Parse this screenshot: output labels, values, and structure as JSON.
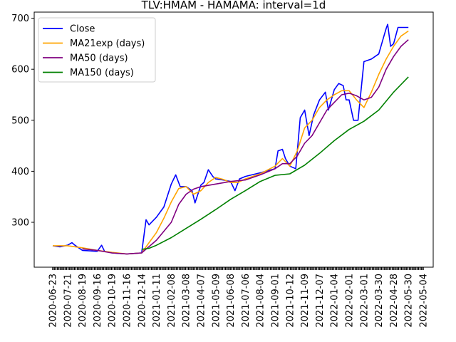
{
  "chart_data": {
    "type": "line",
    "title": "TLV:HMAM - HAMAMA: interval=1d",
    "xlabel": "",
    "ylabel": "",
    "ylim": [
      212,
      712
    ],
    "y_ticks": [
      300,
      400,
      500,
      600,
      700
    ],
    "x_tick_labels": [
      "2020-06-23",
      "2020-07-21",
      "2020-08-19",
      "2020-09-16",
      "2020-10-19",
      "2020-11-16",
      "2020-12-14",
      "2021-01-11",
      "2021-02-08",
      "2021-03-08",
      "2021-04-07",
      "2021-05-09",
      "2021-06-08",
      "2021-07-06",
      "2021-08-04",
      "2021-09-01",
      "2021-10-12",
      "2021-11-09",
      "2021-12-07",
      "2022-01-04",
      "2022-02-01",
      "2022-03-01",
      "2022-03-30",
      "2022-04-28",
      "2022-05-30",
      "2022-05-04"
    ],
    "grid": false,
    "legend_position": "top-left",
    "series": [
      {
        "name": "Close",
        "color": "#0000ff",
        "points": [
          [
            0,
            254
          ],
          [
            0.5,
            252
          ],
          [
            1,
            255
          ],
          [
            1.3,
            260
          ],
          [
            1.5,
            255
          ],
          [
            2,
            245
          ],
          [
            3,
            243
          ],
          [
            3.3,
            255
          ],
          [
            3.5,
            243
          ],
          [
            4,
            240
          ],
          [
            5,
            238
          ],
          [
            6,
            240
          ],
          [
            6.3,
            305
          ],
          [
            6.5,
            295
          ],
          [
            7,
            310
          ],
          [
            7.5,
            330
          ],
          [
            8,
            375
          ],
          [
            8.3,
            393
          ],
          [
            8.6,
            370
          ],
          [
            9,
            370
          ],
          [
            9.4,
            362
          ],
          [
            9.6,
            338
          ],
          [
            10,
            373
          ],
          [
            10.2,
            378
          ],
          [
            10.5,
            403
          ],
          [
            10.8,
            390
          ],
          [
            11,
            385
          ],
          [
            11.5,
            383
          ],
          [
            12,
            380
          ],
          [
            12.3,
            362
          ],
          [
            12.6,
            385
          ],
          [
            13,
            390
          ],
          [
            14,
            397
          ],
          [
            15,
            405
          ],
          [
            15.2,
            440
          ],
          [
            15.5,
            443
          ],
          [
            15.7,
            425
          ],
          [
            16,
            410
          ],
          [
            16.4,
            405
          ],
          [
            16.7,
            505
          ],
          [
            17,
            520
          ],
          [
            17.3,
            470
          ],
          [
            17.6,
            510
          ],
          [
            18,
            540
          ],
          [
            18.4,
            555
          ],
          [
            18.6,
            520
          ],
          [
            19,
            560
          ],
          [
            19.3,
            572
          ],
          [
            19.6,
            568
          ],
          [
            19.8,
            540
          ],
          [
            20,
            540
          ],
          [
            20.3,
            500
          ],
          [
            20.6,
            500
          ],
          [
            21,
            615
          ],
          [
            21.5,
            620
          ],
          [
            22,
            630
          ],
          [
            22.3,
            660
          ],
          [
            22.5,
            680
          ],
          [
            22.6,
            688
          ],
          [
            22.8,
            645
          ],
          [
            23,
            650
          ],
          [
            23.3,
            682
          ],
          [
            24,
            682
          ]
        ]
      },
      {
        "name": "MA21exp (days)",
        "color": "#ffa500",
        "points": [
          [
            0,
            254
          ],
          [
            1,
            254
          ],
          [
            2,
            250
          ],
          [
            3,
            245
          ],
          [
            4,
            241
          ],
          [
            5,
            238
          ],
          [
            6,
            240
          ],
          [
            6.5,
            260
          ],
          [
            7,
            280
          ],
          [
            7.5,
            308
          ],
          [
            8,
            340
          ],
          [
            8.5,
            366
          ],
          [
            9,
            370
          ],
          [
            9.5,
            355
          ],
          [
            10,
            362
          ],
          [
            10.5,
            378
          ],
          [
            11,
            388
          ],
          [
            11.5,
            384
          ],
          [
            12,
            378
          ],
          [
            12.5,
            378
          ],
          [
            13,
            385
          ],
          [
            14,
            395
          ],
          [
            15,
            410
          ],
          [
            15.5,
            425
          ],
          [
            16,
            410
          ],
          [
            16.5,
            440
          ],
          [
            17,
            485
          ],
          [
            17.5,
            500
          ],
          [
            18,
            525
          ],
          [
            18.5,
            540
          ],
          [
            19,
            550
          ],
          [
            19.5,
            558
          ],
          [
            20,
            558
          ],
          [
            20.5,
            540
          ],
          [
            21,
            525
          ],
          [
            21.5,
            555
          ],
          [
            22,
            590
          ],
          [
            22.5,
            620
          ],
          [
            23,
            645
          ],
          [
            23.5,
            665
          ],
          [
            24,
            675
          ]
        ]
      },
      {
        "name": "MA50 (days)",
        "color": "#800080",
        "points": [
          [
            2,
            248
          ],
          [
            3,
            245
          ],
          [
            4,
            240
          ],
          [
            5,
            238
          ],
          [
            6,
            240
          ],
          [
            7,
            265
          ],
          [
            8,
            300
          ],
          [
            8.5,
            335
          ],
          [
            9,
            355
          ],
          [
            9.5,
            365
          ],
          [
            10,
            370
          ],
          [
            11,
            375
          ],
          [
            12,
            380
          ],
          [
            13,
            383
          ],
          [
            14,
            393
          ],
          [
            15,
            405
          ],
          [
            15.5,
            415
          ],
          [
            16,
            415
          ],
          [
            16.5,
            430
          ],
          [
            17,
            455
          ],
          [
            17.5,
            470
          ],
          [
            18,
            495
          ],
          [
            18.5,
            520
          ],
          [
            19,
            535
          ],
          [
            19.5,
            550
          ],
          [
            20,
            553
          ],
          [
            20.5,
            548
          ],
          [
            21,
            540
          ],
          [
            21.5,
            545
          ],
          [
            22,
            565
          ],
          [
            22.5,
            600
          ],
          [
            23,
            625
          ],
          [
            23.5,
            645
          ],
          [
            24,
            658
          ]
        ]
      },
      {
        "name": "MA150 (days)",
        "color": "#008000",
        "points": [
          [
            6,
            247
          ],
          [
            6.5,
            249
          ],
          [
            7,
            255
          ],
          [
            8,
            270
          ],
          [
            9,
            288
          ],
          [
            10,
            306
          ],
          [
            11,
            325
          ],
          [
            12,
            345
          ],
          [
            13,
            362
          ],
          [
            14,
            380
          ],
          [
            15,
            392
          ],
          [
            16,
            395
          ],
          [
            17,
            412
          ],
          [
            18,
            435
          ],
          [
            19,
            460
          ],
          [
            20,
            482
          ],
          [
            21,
            498
          ],
          [
            22,
            520
          ],
          [
            23,
            555
          ],
          [
            24,
            585
          ]
        ]
      }
    ]
  }
}
